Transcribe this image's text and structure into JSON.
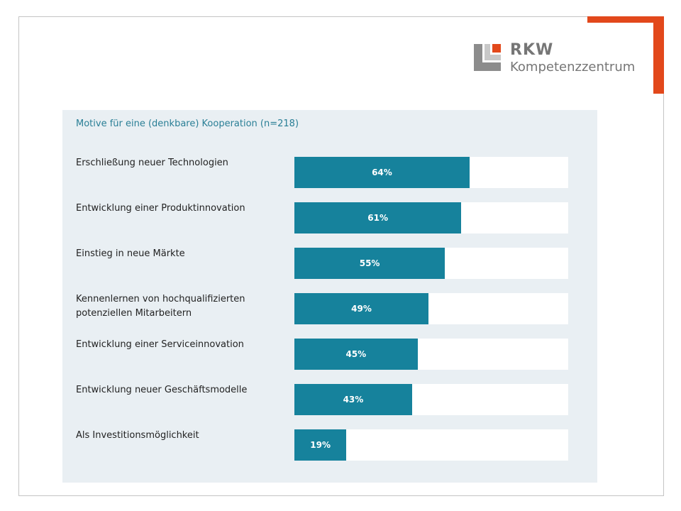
{
  "logo": {
    "name": "RKW",
    "subtitle": "Kompetenzzentrum"
  },
  "colors": {
    "accent": "#e2481b",
    "bar": "#16829c",
    "panel": "#e9eff3",
    "title": "#2a7f96"
  },
  "chart_data": {
    "type": "bar",
    "orientation": "horizontal",
    "title": "Motive für eine (denkbare) Kooperation (n=218)",
    "categories": [
      "Erschließung neuer Technologien",
      "Entwicklung einer Produktinnovation",
      "Einstieg in neue Märkte",
      "Kennenlernen von hochqualifizierten potenziellen Mitarbeitern",
      "Entwicklung einer Serviceinnovation",
      "Entwicklung neuer Geschäftsmodelle",
      "Als Investitionsmöglichkeit"
    ],
    "values": [
      64,
      61,
      55,
      49,
      45,
      43,
      19
    ],
    "value_labels": [
      "64%",
      "61%",
      "55%",
      "49%",
      "45%",
      "43%",
      "19%"
    ],
    "unit": "%",
    "xlim": [
      0,
      100
    ],
    "grid": false,
    "legend": "none"
  }
}
